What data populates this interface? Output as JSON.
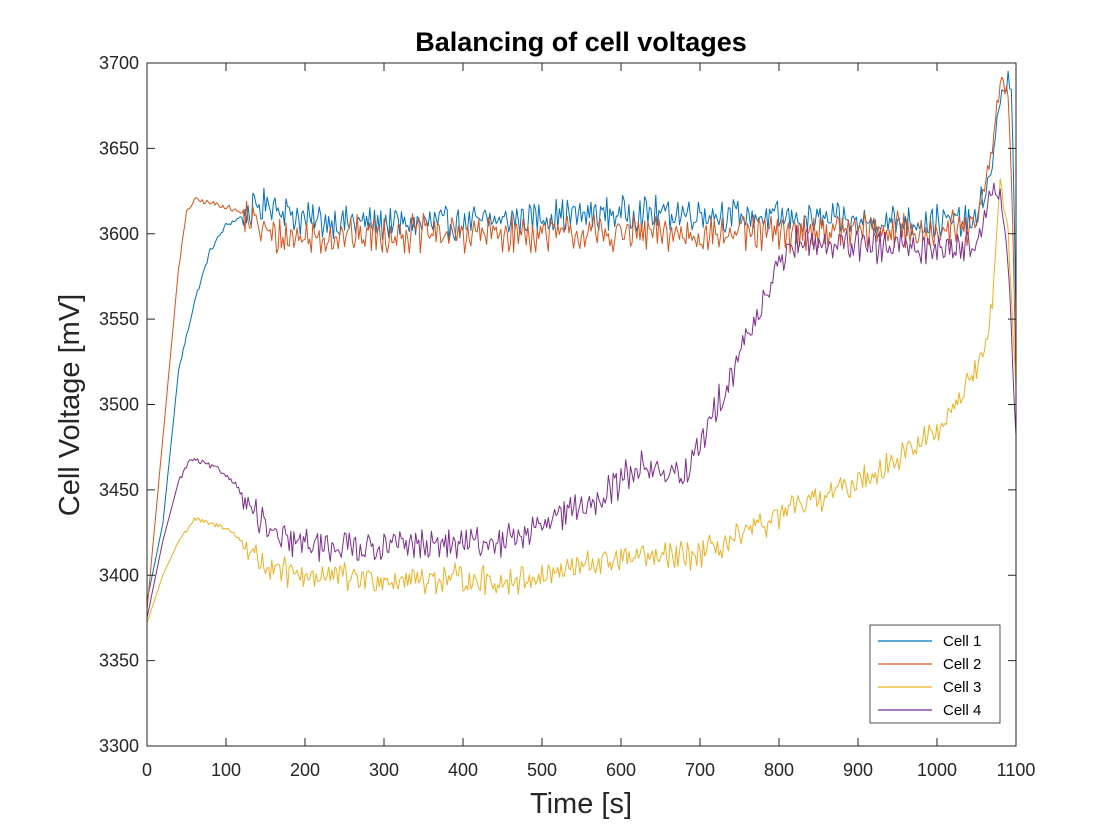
{
  "chart_data": {
    "type": "line",
    "title": "Balancing of cell voltages",
    "xlabel": "Time [s]",
    "ylabel": "Cell Voltage [mV]",
    "xlim": [
      0,
      1100
    ],
    "ylim": [
      3300,
      3700
    ],
    "xticks": [
      0,
      100,
      200,
      300,
      400,
      500,
      600,
      700,
      800,
      900,
      1000,
      1100
    ],
    "yticks": [
      3300,
      3350,
      3400,
      3450,
      3500,
      3550,
      3600,
      3650,
      3700
    ],
    "grid": false,
    "legend_position": "bottom-right",
    "series": [
      {
        "name": "Cell 1",
        "color": "#0072BD",
        "x": [
          0,
          20,
          40,
          60,
          80,
          100,
          120,
          140,
          160,
          180,
          200,
          300,
          400,
          500,
          600,
          700,
          800,
          820,
          850,
          900,
          950,
          1000,
          1050,
          1070,
          1080,
          1090,
          1095,
          1100
        ],
        "y": [
          3385,
          3430,
          3520,
          3560,
          3590,
          3605,
          3610,
          3615,
          3618,
          3612,
          3608,
          3606,
          3606,
          3610,
          3612,
          3612,
          3609,
          3609,
          3608,
          3607,
          3607,
          3607,
          3607,
          3640,
          3680,
          3690,
          3680,
          3550
        ],
        "noise": 8
      },
      {
        "name": "Cell 2",
        "color": "#D95319",
        "x": [
          0,
          20,
          40,
          50,
          60,
          80,
          100,
          120,
          140,
          160,
          200,
          300,
          400,
          500,
          600,
          700,
          800,
          850,
          900,
          950,
          1000,
          1050,
          1070,
          1080,
          1090,
          1095,
          1100
        ],
        "y": [
          3380,
          3480,
          3580,
          3612,
          3620,
          3618,
          3616,
          3612,
          3605,
          3598,
          3598,
          3600,
          3600,
          3600,
          3600,
          3600,
          3600,
          3602,
          3602,
          3602,
          3602,
          3603,
          3650,
          3690,
          3680,
          3620,
          3515
        ],
        "noise": 9
      },
      {
        "name": "Cell 3",
        "color": "#EDB120",
        "x": [
          0,
          20,
          40,
          60,
          80,
          100,
          120,
          140,
          160,
          200,
          300,
          400,
          450,
          500,
          550,
          600,
          650,
          700,
          750,
          800,
          850,
          900,
          950,
          1000,
          1030,
          1060,
          1070,
          1080,
          1090,
          1100
        ],
        "y": [
          3372,
          3400,
          3420,
          3433,
          3430,
          3428,
          3420,
          3410,
          3402,
          3400,
          3398,
          3398,
          3396,
          3400,
          3405,
          3410,
          3410,
          3412,
          3422,
          3435,
          3445,
          3455,
          3468,
          3485,
          3505,
          3530,
          3560,
          3630,
          3600,
          3510
        ],
        "noise": 7
      },
      {
        "name": "Cell 4",
        "color": "#7E2F8E",
        "x": [
          0,
          20,
          40,
          55,
          70,
          90,
          110,
          130,
          150,
          170,
          200,
          300,
          400,
          450,
          500,
          550,
          600,
          620,
          650,
          680,
          700,
          750,
          800,
          820,
          850,
          900,
          950,
          1000,
          1050,
          1070,
          1080,
          1090,
          1100
        ],
        "y": [
          3375,
          3420,
          3455,
          3468,
          3466,
          3462,
          3455,
          3440,
          3428,
          3420,
          3418,
          3417,
          3418,
          3420,
          3428,
          3440,
          3455,
          3465,
          3460,
          3458,
          3475,
          3530,
          3580,
          3595,
          3595,
          3592,
          3592,
          3592,
          3594,
          3628,
          3620,
          3585,
          3480
        ],
        "noise": 8
      }
    ]
  }
}
